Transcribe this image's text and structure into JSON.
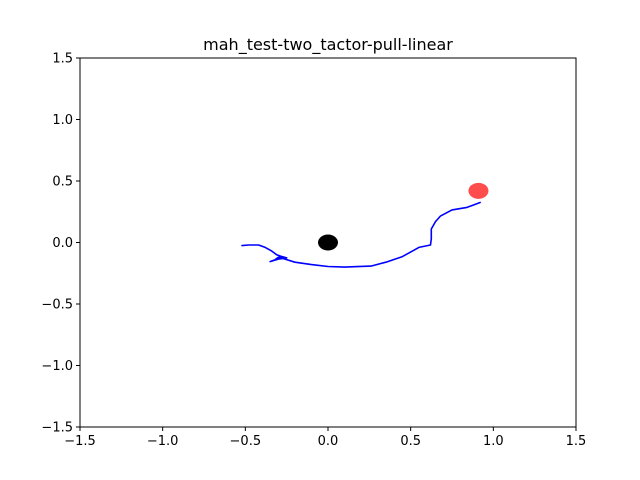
{
  "chart_data": {
    "type": "line",
    "title": "mah_test-two_tactor-pull-linear",
    "xlabel": "",
    "ylabel": "",
    "xlim": [
      -1.5,
      1.5
    ],
    "ylim": [
      -1.5,
      1.5
    ],
    "x_ticks": [
      -1.5,
      -1.0,
      -0.5,
      0.0,
      0.5,
      1.0,
      1.5
    ],
    "y_ticks": [
      -1.5,
      -1.0,
      -0.5,
      0.0,
      0.5,
      1.0,
      1.5
    ],
    "x_tick_labels": [
      "−1.5",
      "−1.0",
      "−0.5",
      "0.0",
      "0.5",
      "1.0",
      "1.5"
    ],
    "y_tick_labels": [
      "−1.5",
      "−1.0",
      "−0.5",
      "0.0",
      "0.5",
      "1.0",
      "1.5"
    ],
    "grid": false,
    "series": [
      {
        "color": "#0000ff",
        "points": [
          [
            -0.52,
            -0.025
          ],
          [
            -0.48,
            -0.02
          ],
          [
            -0.42,
            -0.02
          ],
          [
            -0.38,
            -0.04
          ],
          [
            -0.34,
            -0.07
          ],
          [
            -0.31,
            -0.1
          ],
          [
            -0.28,
            -0.115
          ],
          [
            -0.25,
            -0.125
          ],
          [
            -0.29,
            -0.11
          ],
          [
            -0.32,
            -0.14
          ],
          [
            -0.35,
            -0.155
          ],
          [
            -0.3,
            -0.135
          ],
          [
            -0.27,
            -0.13
          ],
          [
            -0.3,
            -0.12
          ],
          [
            -0.26,
            -0.135
          ],
          [
            -0.2,
            -0.16
          ],
          [
            -0.1,
            -0.18
          ],
          [
            0.0,
            -0.195
          ],
          [
            0.1,
            -0.2
          ],
          [
            0.26,
            -0.192
          ],
          [
            0.35,
            -0.16
          ],
          [
            0.45,
            -0.115
          ],
          [
            0.55,
            -0.04
          ],
          [
            0.62,
            -0.02
          ],
          [
            0.625,
            0.03
          ],
          [
            0.625,
            0.11
          ],
          [
            0.65,
            0.17
          ],
          [
            0.68,
            0.215
          ],
          [
            0.75,
            0.265
          ],
          [
            0.84,
            0.285
          ],
          [
            0.88,
            0.305
          ],
          [
            0.92,
            0.325
          ]
        ]
      }
    ],
    "markers": [
      {
        "x": 0.0,
        "y": 0.0,
        "color": "#000000",
        "alpha": 1.0
      },
      {
        "x": 0.91,
        "y": 0.42,
        "color": "#ff0000",
        "alpha": 0.7
      }
    ]
  }
}
